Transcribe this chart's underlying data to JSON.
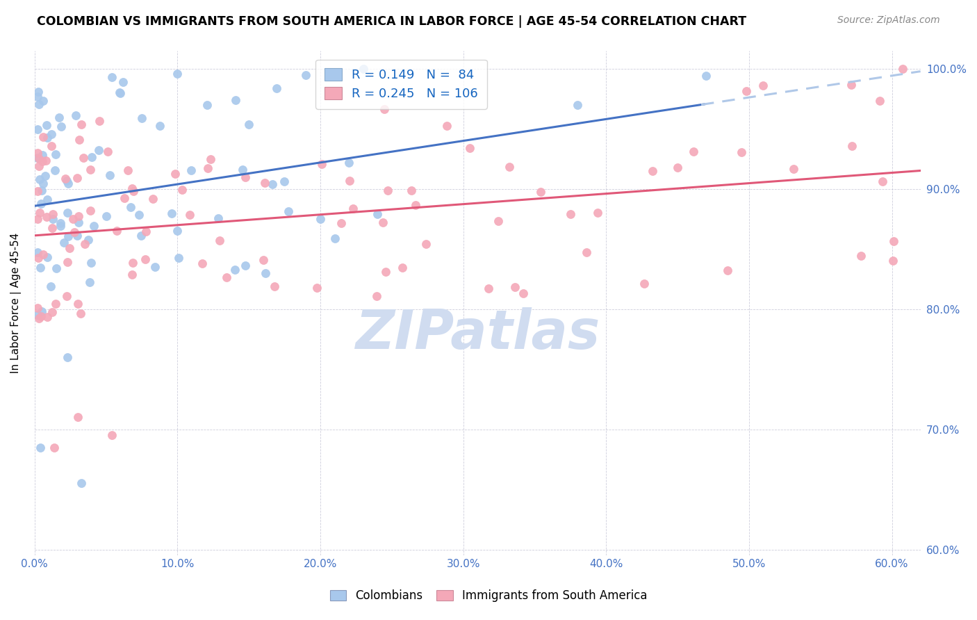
{
  "title": "COLOMBIAN VS IMMIGRANTS FROM SOUTH AMERICA IN LABOR FORCE | AGE 45-54 CORRELATION CHART",
  "source": "Source: ZipAtlas.com",
  "ylabel": "In Labor Force | Age 45-54",
  "xlim": [
    0.0,
    0.62
  ],
  "ylim": [
    0.595,
    1.015
  ],
  "xtick_values": [
    0.0,
    0.1,
    0.2,
    0.3,
    0.4,
    0.5,
    0.6
  ],
  "ytick_values": [
    0.6,
    0.7,
    0.8,
    0.9,
    1.0
  ],
  "blue_R": 0.149,
  "blue_N": 84,
  "pink_R": 0.245,
  "pink_N": 106,
  "blue_color": "#A8C8EC",
  "pink_color": "#F4A8B8",
  "blue_line_color": "#4472C4",
  "pink_line_color": "#E05878",
  "blue_dash_color": "#B0C8E8",
  "watermark": "ZIPatlas",
  "watermark_color": "#D0DCF0",
  "legend_color": "#1565C0",
  "legend_N_color": "#E05878"
}
